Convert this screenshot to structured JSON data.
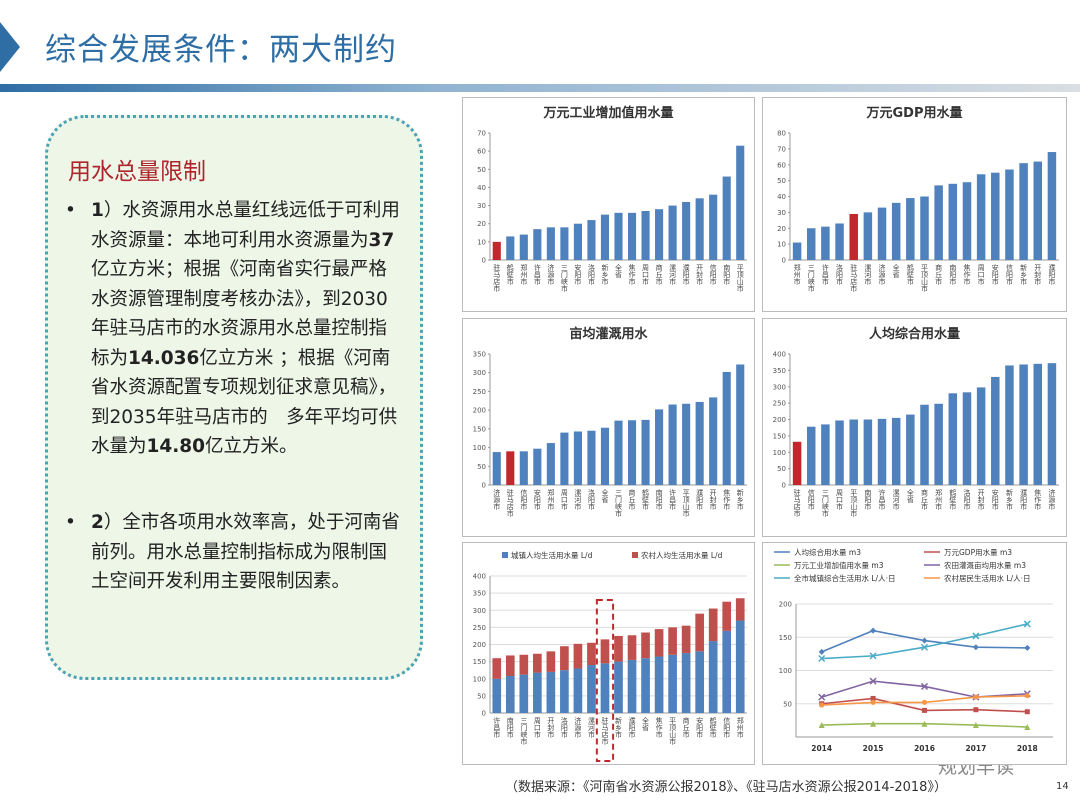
{
  "header": {
    "title": "综合发展条件：两大制约"
  },
  "panel": {
    "heading": "用水总量限制",
    "bullets": [
      {
        "segments": [
          {
            "text": "1",
            "bold": true
          },
          {
            "text": "）水资源用水总量红线远低于可利用水资源量：本地可利用水资源量为",
            "bold": false
          },
          {
            "text": "37",
            "bold": true
          },
          {
            "text": "亿立方米；根据《河南省实行最严格水资源管理制度考核办法》，到2030年驻马店市的水资源用水总量控制指标为",
            "bold": false
          },
          {
            "text": "14.036",
            "bold": true
          },
          {
            "text": "亿立方米 ；根据《河南省水资源配置专项规划征求意见稿》，到2035年驻马店市的　多年平均可供水量为",
            "bold": false
          },
          {
            "text": "14.80",
            "bold": true
          },
          {
            "text": "亿立方米。",
            "bold": false
          }
        ]
      },
      {
        "segments": [
          {
            "text": "2",
            "bold": true
          },
          {
            "text": "）全市各项用水效率高，处于河南省前列。用水总量控制指标成为限制国土空间开发利用主要限制因素。",
            "bold": false
          }
        ]
      }
    ]
  },
  "charts": [
    {
      "type": "bar",
      "title": "万元工业增加值用水量",
      "color": "#4f81bd",
      "highlight": "驻马店市",
      "highlight_color": "#c0282d",
      "categories": [
        "驻马店市",
        "鹤壁市",
        "郑州市",
        "许昌市",
        "济源市",
        "三门峡市",
        "安阳市",
        "洛阳市",
        "新乡市",
        "全省",
        "焦作市",
        "周口市",
        "商丘市",
        "漯河市",
        "濮阳市",
        "开封市",
        "信阳市",
        "南阳市",
        "平顶山市"
      ],
      "values": [
        10,
        13,
        14,
        17,
        18,
        18,
        20,
        22,
        25,
        26,
        26,
        27,
        28,
        30,
        32,
        34,
        36,
        46,
        63
      ],
      "ylim": [
        0,
        70
      ],
      "yticks": [
        0,
        10,
        20,
        30,
        40,
        50,
        60,
        70
      ],
      "grid": false
    },
    {
      "type": "bar",
      "title": "万元GDP用水量",
      "color": "#4f81bd",
      "highlight": "驻马店市",
      "highlight_color": "#c0282d",
      "categories": [
        "郑州市",
        "三门峡市",
        "许昌市",
        "洛阳市",
        "驻马店市",
        "漯河市",
        "济源市",
        "全省",
        "鹤壁市",
        "平顶山市",
        "商丘市",
        "南阳市",
        "焦作市",
        "周口市",
        "安阳市",
        "信阳市",
        "新乡市",
        "开封市",
        "濮阳市"
      ],
      "values": [
        11,
        20,
        21,
        23,
        29,
        30,
        33,
        36,
        39,
        40,
        47,
        48,
        49,
        54,
        55,
        57,
        61,
        62,
        68
      ],
      "ylim": [
        0,
        80
      ],
      "yticks": [
        0,
        10,
        20,
        30,
        40,
        50,
        60,
        70,
        80
      ],
      "grid": false
    },
    {
      "type": "bar",
      "title": "亩均灌溉用水",
      "color": "#4f81bd",
      "highlight": "驻马店市",
      "highlight_color": "#c0282d",
      "categories": [
        "济源市",
        "驻马店市",
        "信阳市",
        "安阳市",
        "郑州市",
        "周口市",
        "漯河市",
        "洛阳市",
        "全省",
        "三门峡市",
        "商丘市",
        "鹤壁市",
        "南阳市",
        "许昌市",
        "平顶山市",
        "濮阳市",
        "开封市",
        "焦作市",
        "新乡市"
      ],
      "values": [
        88,
        90,
        90,
        97,
        112,
        140,
        143,
        145,
        153,
        172,
        173,
        174,
        202,
        215,
        217,
        222,
        234,
        302,
        322
      ],
      "ylim": [
        0,
        350
      ],
      "yticks": [
        0,
        50,
        100,
        150,
        200,
        250,
        300,
        350
      ],
      "grid": false
    },
    {
      "type": "bar",
      "title": "人均综合用水量",
      "color": "#4f81bd",
      "highlight": "驻马店市",
      "highlight_color": "#c0282d",
      "categories": [
        "驻马店市",
        "信阳市",
        "三门峡市",
        "周口市",
        "平顶山市",
        "南阳市",
        "许昌市",
        "漯河市",
        "全省",
        "商丘市",
        "郑州市",
        "鹤壁市",
        "洛阳市",
        "开封市",
        "安阳市",
        "新乡市",
        "濮阳市",
        "焦作市",
        "济源市"
      ],
      "values": [
        132,
        178,
        185,
        197,
        200,
        200,
        202,
        205,
        215,
        245,
        248,
        280,
        283,
        298,
        330,
        365,
        368,
        370,
        372
      ],
      "ylim": [
        0,
        400
      ],
      "yticks": [
        0,
        50,
        100,
        150,
        200,
        250,
        300,
        350,
        400
      ],
      "grid": false
    },
    {
      "type": "stacked_bar",
      "highlight": "驻马店市",
      "highlight_color": "#c0282d",
      "categories": [
        "许昌市",
        "南阳市",
        "三门峡市",
        "周口市",
        "开封市",
        "洛阳市",
        "济源市",
        "漯河市",
        "驻马店市",
        "新乡市",
        "濮阳市",
        "全省",
        "焦作市",
        "平顶山市",
        "商丘市",
        "安阳市",
        "鹤壁市",
        "信阳市",
        "郑州市"
      ],
      "series": [
        {
          "name": "城镇人均生活用水量 L/d",
          "color": "#4f81bd",
          "values": [
            100,
            108,
            112,
            118,
            120,
            125,
            130,
            140,
            145,
            150,
            155,
            160,
            165,
            170,
            175,
            180,
            210,
            240,
            270
          ]
        },
        {
          "name": "农村人均生活用水量 L/d",
          "color": "#c0504d",
          "values": [
            60,
            60,
            58,
            55,
            60,
            70,
            72,
            65,
            70,
            75,
            72,
            75,
            80,
            80,
            80,
            110,
            95,
            85,
            65
          ]
        }
      ],
      "ylim": [
        0,
        400
      ],
      "yticks": [
        0,
        50,
        100,
        150,
        200,
        250,
        300,
        350,
        400
      ],
      "grid": true
    },
    {
      "type": "line",
      "categories": [
        "2014",
        "2015",
        "2016",
        "2017",
        "2018"
      ],
      "series": [
        {
          "name": "人均综合用水量 m3",
          "color": "#4f81bd",
          "marker": "diamond",
          "values": [
            128,
            160,
            145,
            135,
            134
          ]
        },
        {
          "name": "万元GDP用水量 m3",
          "color": "#c0504d",
          "marker": "square",
          "values": [
            50,
            58,
            40,
            41,
            38
          ]
        },
        {
          "name": "万元工业增加值用水量 m3",
          "color": "#9bbb59",
          "marker": "triangle",
          "values": [
            18,
            20,
            20,
            18,
            15
          ]
        },
        {
          "name": "农田灌溉亩均用水量 m3",
          "color": "#8064a2",
          "marker": "x",
          "values": [
            60,
            84,
            76,
            60,
            65
          ]
        },
        {
          "name": "全市城镇综合生活用水 L/人·日",
          "color": "#4bacc6",
          "marker": "x",
          "values": [
            118,
            122,
            135,
            152,
            170
          ]
        },
        {
          "name": "农村居民生活用水 L/人·日",
          "color": "#f79646",
          "marker": "circle",
          "values": [
            48,
            52,
            52,
            60,
            62
          ]
        }
      ],
      "ylim": [
        0,
        200
      ],
      "yticks": [
        50,
        100,
        150,
        200
      ],
      "grid": true
    }
  ],
  "footer": {
    "source": "（数据来源：《河南省水资源公报2018》、《驻马店水资源公报2014-2018》）",
    "page": "14",
    "watermark": "规划早读"
  }
}
